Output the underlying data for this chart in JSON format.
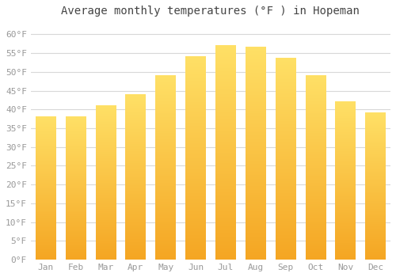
{
  "title": "Average monthly temperatures (°F ) in Hopeman",
  "months": [
    "Jan",
    "Feb",
    "Mar",
    "Apr",
    "May",
    "Jun",
    "Jul",
    "Aug",
    "Sep",
    "Oct",
    "Nov",
    "Dec"
  ],
  "values": [
    38,
    38,
    41,
    44,
    49,
    54,
    57,
    56.5,
    53.5,
    49,
    42,
    39
  ],
  "bar_color_bottom": "#F5A623",
  "bar_color_top": "#FFE066",
  "ylim": [
    0,
    63
  ],
  "yticks": [
    0,
    5,
    10,
    15,
    20,
    25,
    30,
    35,
    40,
    45,
    50,
    55,
    60
  ],
  "background_color": "#ffffff",
  "grid_color": "#d8d8d8",
  "title_fontsize": 10,
  "tick_fontsize": 8,
  "tick_color": "#999999",
  "bar_width": 0.68
}
